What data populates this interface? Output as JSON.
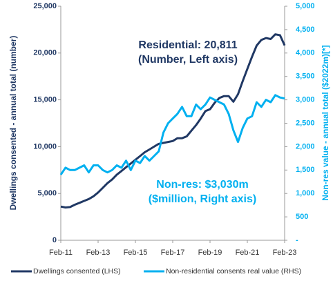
{
  "chart_data": {
    "type": "line",
    "categories": [
      "Feb-11",
      null,
      null,
      null,
      null,
      null,
      null,
      null,
      "Feb-13",
      null,
      null,
      null,
      null,
      null,
      null,
      null,
      "Feb-15",
      null,
      null,
      null,
      null,
      null,
      null,
      null,
      "Feb-17",
      null,
      null,
      null,
      null,
      null,
      null,
      null,
      "Feb-19",
      null,
      null,
      null,
      null,
      null,
      null,
      null,
      "Feb-21",
      null,
      null,
      null,
      null,
      null,
      null,
      null,
      "Feb-23"
    ],
    "series": [
      {
        "name": "Dwellings consented (LHS)",
        "color": "#203864",
        "axis": "y",
        "values": [
          3600,
          3500,
          3550,
          3800,
          4000,
          4200,
          4400,
          4700,
          5100,
          5600,
          6100,
          6500,
          7000,
          7400,
          7800,
          8200,
          8600,
          9000,
          9400,
          9700,
          10000,
          10300,
          10400,
          10500,
          10600,
          10900,
          10900,
          11100,
          11700,
          12300,
          13000,
          13800,
          14000,
          14700,
          15200,
          15400,
          15400,
          14800,
          15600,
          17000,
          18300,
          19600,
          20800,
          21400,
          21600,
          21500,
          22000,
          21900,
          20811
        ]
      },
      {
        "name": "Non-residential consents real value (RHS)",
        "color": "#00b0f0",
        "axis": "y2",
        "values": [
          1400,
          1550,
          1500,
          1500,
          1550,
          1600,
          1450,
          1600,
          1600,
          1500,
          1450,
          1500,
          1600,
          1550,
          1700,
          1500,
          1700,
          1650,
          1800,
          1700,
          1800,
          1900,
          2300,
          2500,
          2600,
          2700,
          2850,
          2650,
          2650,
          2900,
          2800,
          2900,
          3050,
          3000,
          2950,
          2900,
          2700,
          2350,
          2100,
          2400,
          2600,
          2650,
          2950,
          2850,
          3000,
          2950,
          3100,
          3050,
          3030
        ]
      }
    ],
    "ylabel": "Dwellings consented - annual total (number)",
    "y2label": "Non-res value - annual total ($2022m)[*]",
    "ylim": [
      0,
      25000
    ],
    "yticks": [
      0,
      {
        "value": 5000,
        "label": "5,000"
      },
      {
        "value": 10000,
        "label": "10,000"
      },
      {
        "value": 15000,
        "label": "15,000"
      },
      {
        "value": 20000,
        "label": "20,000"
      },
      {
        "value": 25000,
        "label": "25,000"
      }
    ],
    "y2lim": [
      0,
      5000
    ],
    "y2ticks": [
      {
        "value": 0,
        "label": "-"
      },
      500,
      {
        "value": 1000,
        "label": "1,000"
      },
      {
        "value": 1500,
        "label": "1,500"
      },
      {
        "value": 2000,
        "label": "2,000"
      },
      {
        "value": 2500,
        "label": "2,500"
      },
      {
        "value": 3000,
        "label": "3,000"
      },
      {
        "value": 3500,
        "label": "3,500"
      },
      {
        "value": 4000,
        "label": "4,000"
      },
      {
        "value": 4500,
        "label": "4,500"
      },
      {
        "value": 5000,
        "label": "5,000"
      }
    ],
    "annotations": [
      {
        "lines": [
          "Residential: 20,811",
          "(Number, Left axis)"
        ],
        "color": "#203864"
      },
      {
        "lines": [
          "Non-res: $3,030m",
          "($million, Right axis)"
        ],
        "color": "#00b0f0"
      }
    ]
  }
}
